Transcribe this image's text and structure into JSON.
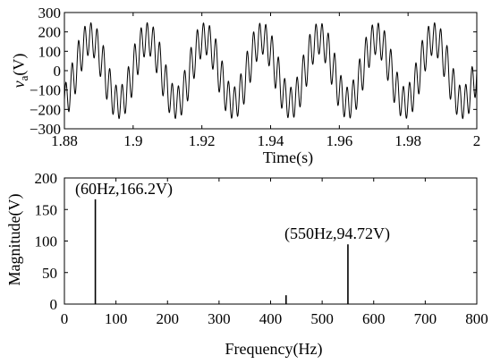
{
  "chart_data": [
    {
      "type": "line",
      "title": "",
      "xlabel": "Time(s)",
      "ylabel": "v",
      "ylabel_sub": "a",
      "ylabel_unit": "(V)",
      "xlim": [
        1.88,
        2.0
      ],
      "ylim": [
        -300,
        300
      ],
      "xticks": [
        1.88,
        1.9,
        1.92,
        1.94,
        1.96,
        1.98,
        2.0
      ],
      "xtick_labels": [
        "1.88",
        "1.9",
        "1.92",
        "1.94",
        "1.96",
        "1.98",
        "2"
      ],
      "yticks": [
        -300,
        -200,
        -100,
        0,
        100,
        200,
        300
      ],
      "ytick_labels": [
        "−300",
        "−200",
        "−100",
        "0",
        "100",
        "200",
        "300"
      ],
      "series": [
        {
          "components": [
            {
              "frequency_hz": 60,
              "amplitude_v": 166.2
            },
            {
              "frequency_hz": 430,
              "amplitude_v": 14
            },
            {
              "frequency_hz": 550,
              "amplitude_v": 94.72
            }
          ]
        }
      ],
      "grid": false
    },
    {
      "type": "bar",
      "title": "",
      "xlabel": "Frequency(Hz)",
      "ylabel": "Magnitude(V)",
      "xlim": [
        0,
        800
      ],
      "ylim": [
        0,
        200
      ],
      "xticks": [
        0,
        100,
        200,
        300,
        400,
        500,
        600,
        700,
        800
      ],
      "xtick_labels": [
        "0",
        "100",
        "200",
        "300",
        "400",
        "500",
        "600",
        "700",
        "800"
      ],
      "yticks": [
        0,
        50,
        100,
        150,
        200
      ],
      "ytick_labels": [
        "0",
        "50",
        "100",
        "150",
        "200"
      ],
      "series": [
        {
          "x": [
            60,
            430,
            550
          ],
          "values": [
            166.2,
            14,
            94.72
          ]
        }
      ],
      "annotations": [
        {
          "text": "(60Hz,166.2V)"
        },
        {
          "text": "(550Hz,94.72V)"
        }
      ],
      "grid": false
    }
  ]
}
